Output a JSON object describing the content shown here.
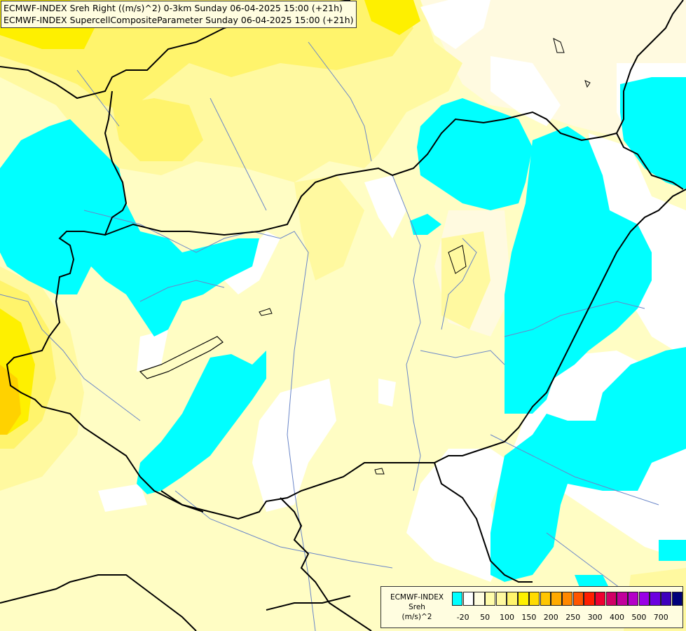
{
  "header": {
    "line1": "ECMWF-INDEX Sreh Right ((m/s)^2) 0-3km Sunday 06-04-2025 15:00 (+21h)",
    "line2": "ECMWF-INDEX SupercellCompositeParameter Sunday 06-04-2025 15:00 (+21h)"
  },
  "legend": {
    "title1": "ECMWF-INDEX",
    "title2": "Sreh",
    "title3": "(m/s)^2",
    "colors": [
      "#00ffff",
      "#ffffff",
      "#fffde0",
      "#fffcaa",
      "#fff9a0",
      "#fff46c",
      "#fef000",
      "#ffdb00",
      "#ffc600",
      "#ffaa00",
      "#ff8800",
      "#ff5500",
      "#ff1e00",
      "#ee0030",
      "#d10066",
      "#c2009c",
      "#b400c8",
      "#9a00e6",
      "#6c00e0",
      "#3e00bd",
      "#00007a"
    ],
    "ticks": [
      {
        "label": "-20",
        "index": 0
      },
      {
        "label": "50",
        "index": 2
      },
      {
        "label": "100",
        "index": 4
      },
      {
        "label": "150",
        "index": 6
      },
      {
        "label": "200",
        "index": 8
      },
      {
        "label": "250",
        "index": 10
      },
      {
        "label": "300",
        "index": 12
      },
      {
        "label": "400",
        "index": 14
      },
      {
        "label": "500",
        "index": 16
      },
      {
        "label": "700",
        "index": 18
      }
    ]
  },
  "map_colors": {
    "base": "#fffdc4",
    "pale": "#fffae0",
    "light": "#fff9a0",
    "yellow": "#fff46c",
    "deep": "#fef000",
    "orange": "#ffd200",
    "cyan": "#00ffff",
    "white": "#ffffff",
    "border": "#000000",
    "river": "#6a86c8"
  }
}
